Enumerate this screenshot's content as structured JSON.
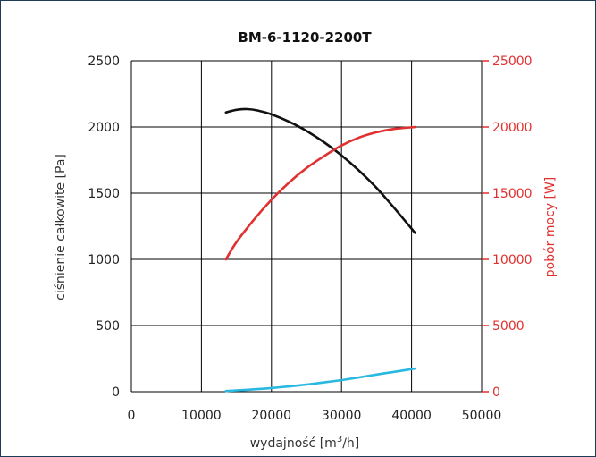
{
  "chart_data": {
    "type": "line",
    "title": "BM-6-1120-2200T",
    "xlabel": "wydajność [m",
    "xlabel_sup": "3",
    "xlabel_end": "/h]",
    "ylabel_left": "ciśnienie całkowite [Pa]",
    "ylabel_right": "pobór mocy [W]",
    "xlim": [
      0,
      50000
    ],
    "ylim_left": [
      0,
      2500
    ],
    "ylim_right": [
      0,
      25000
    ],
    "x_ticks": [
      "0",
      "10000",
      "20000",
      "30000",
      "40000",
      "50000"
    ],
    "y_left_ticks": [
      "0",
      "500",
      "1000",
      "1500",
      "2000",
      "2500"
    ],
    "y_right_ticks": [
      "0",
      "5000",
      "10000",
      "15000",
      "20000",
      "25000"
    ],
    "grid": true,
    "colors": {
      "pressure": "#111111",
      "power": "#e03030",
      "efficiency": "#29b8e0",
      "right_axis": "#e03030"
    },
    "series": [
      {
        "axis": "left",
        "color": "#111111",
        "x": [
          13500,
          15000,
          16500,
          18000,
          20000,
          22500,
          25000,
          27500,
          30000,
          32500,
          35000,
          37500,
          40500
        ],
        "y": [
          2110,
          2130,
          2135,
          2125,
          2095,
          2040,
          1970,
          1885,
          1785,
          1670,
          1540,
          1390,
          1200
        ]
      },
      {
        "axis": "right",
        "color": "#e03030",
        "x": [
          13500,
          15000,
          17500,
          20000,
          22500,
          25000,
          27500,
          30000,
          32500,
          35000,
          37500,
          40500
        ],
        "y": [
          10000,
          11300,
          13000,
          14500,
          15800,
          16900,
          17800,
          18600,
          19200,
          19600,
          19850,
          20000
        ]
      },
      {
        "axis": "left",
        "color": "#29b8e0",
        "x": [
          13500,
          15000,
          17500,
          20000,
          22500,
          25000,
          27500,
          30000,
          32500,
          35000,
          37500,
          40500
        ],
        "y": [
          5,
          10,
          18,
          28,
          40,
          54,
          70,
          88,
          108,
          130,
          150,
          175
        ]
      }
    ]
  }
}
